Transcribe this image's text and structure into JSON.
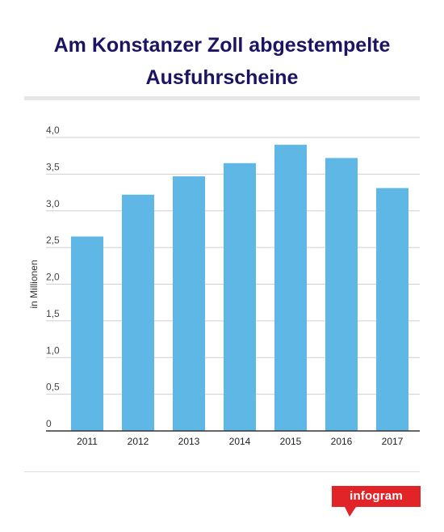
{
  "title": "Am Konstanzer Zoll abgestempelte Ausfuhrscheine",
  "brand": {
    "name": "infogram",
    "color": "#e02428"
  },
  "colors": {
    "bar": "#5fb7e5",
    "title": "#1b1464",
    "grid": "#cfcfcf",
    "axis": "#333333"
  },
  "chart_data": {
    "type": "bar",
    "title": "Am Konstanzer Zoll abgestempelte Ausfuhrscheine",
    "xlabel": "",
    "ylabel": "in Millionen",
    "categories": [
      "2011",
      "2012",
      "2013",
      "2014",
      "2015",
      "2016",
      "2017"
    ],
    "values": [
      2.65,
      3.22,
      3.47,
      3.65,
      3.9,
      3.72,
      3.31
    ],
    "ylim": [
      0,
      4
    ],
    "yticks": [
      0,
      0.5,
      1,
      1.5,
      2,
      2.5,
      3,
      3.5,
      4
    ],
    "ytick_labels": [
      "0",
      "0,5",
      "1,0",
      "1,5",
      "2,0",
      "2,5",
      "3,0",
      "3,5",
      "4,0"
    ],
    "grid": true,
    "legend": "none"
  }
}
